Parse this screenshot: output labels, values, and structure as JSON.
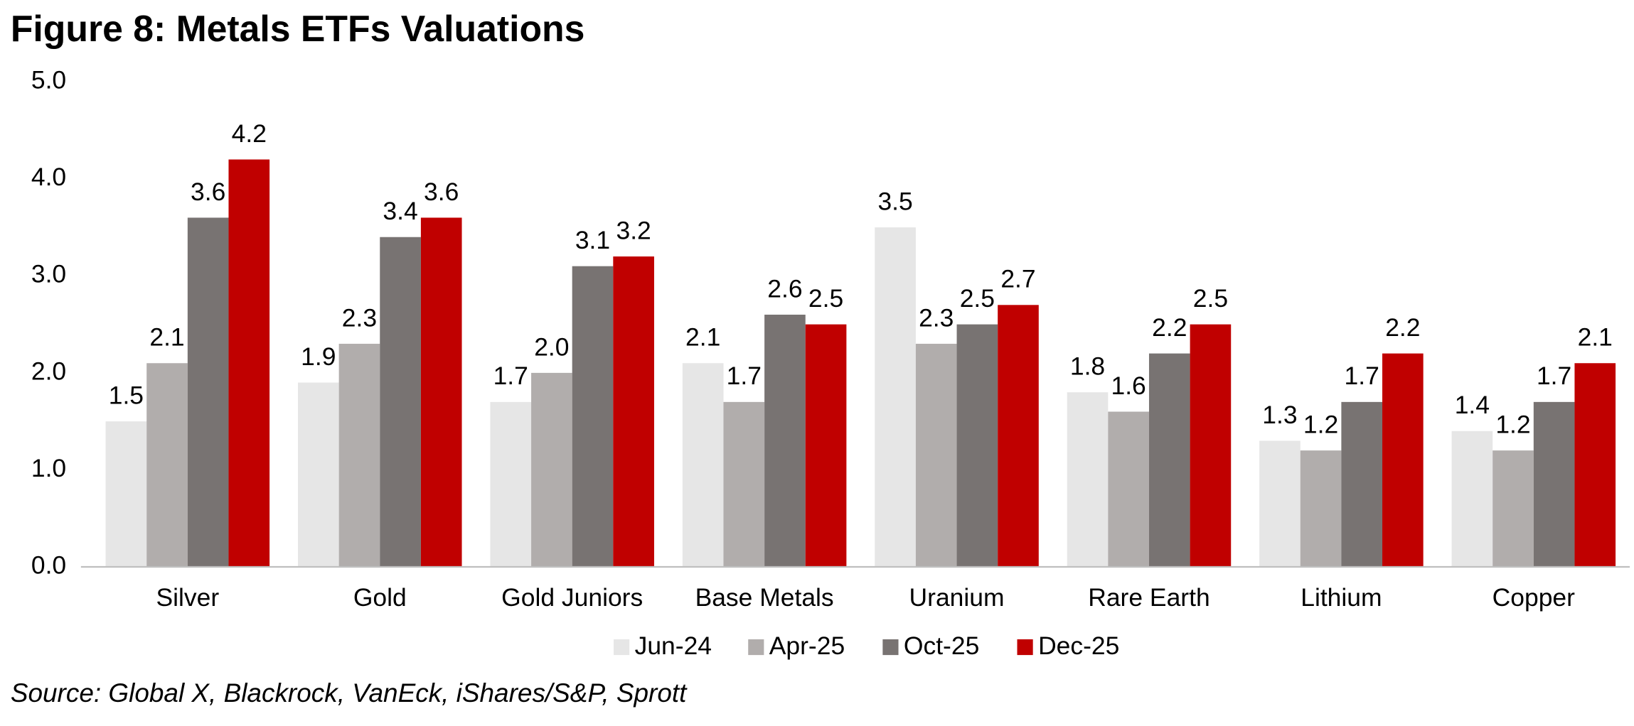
{
  "chart_data": {
    "type": "bar",
    "title": "Figure 8: Metals ETFs Valuations",
    "source": "Source: Global X, Blackrock, VanEck, iShares/S&P, Sprott",
    "categories": [
      "Silver",
      "Gold",
      "Gold Juniors",
      "Base Metals",
      "Uranium",
      "Rare Earth",
      "Lithium",
      "Copper"
    ],
    "series": [
      {
        "name": "Jun-24",
        "color": "#e6e6e6",
        "label_color": "#000000",
        "values": [
          1.5,
          1.9,
          1.7,
          2.1,
          3.5,
          1.8,
          1.3,
          1.4
        ],
        "value_labels": [
          "1.5",
          "1.9",
          "1.7",
          "2.1",
          "3.5",
          "1.8",
          "1.3",
          "1.4"
        ]
      },
      {
        "name": "Apr-25",
        "color": "#b1adac",
        "label_color": "#000000",
        "values": [
          2.1,
          2.3,
          2.0,
          1.7,
          2.3,
          1.6,
          1.2,
          1.2
        ],
        "value_labels": [
          "2.1",
          "2.3",
          "2.0",
          "1.7",
          "2.3",
          "1.6",
          "1.2",
          "1.2"
        ]
      },
      {
        "name": "Oct-25",
        "color": "#787372",
        "label_color": "#000000",
        "values": [
          3.6,
          3.4,
          3.1,
          2.6,
          2.5,
          2.2,
          1.7,
          1.7
        ],
        "value_labels": [
          "3.6",
          "3.4",
          "3.1",
          "2.6",
          "2.5",
          "2.2",
          "1.7",
          "1.7"
        ]
      },
      {
        "name": "Dec-25",
        "color": "#c00000",
        "label_color": "#c00000",
        "values": [
          4.2,
          3.6,
          3.2,
          2.5,
          2.7,
          2.5,
          2.2,
          2.1
        ],
        "value_labels": [
          "4.2",
          "3.6",
          "3.2",
          "2.5",
          "2.7",
          "2.5",
          "2.2",
          "2.1"
        ]
      }
    ],
    "ylim": [
      0,
      5
    ],
    "yticks": [
      {
        "value": 0,
        "label": "0.0"
      },
      {
        "value": 1,
        "label": "1.0"
      },
      {
        "value": 2,
        "label": "2.0"
      },
      {
        "value": 3,
        "label": "3.0"
      },
      {
        "value": 4,
        "label": "4.0"
      },
      {
        "value": 5,
        "label": "5.0"
      }
    ],
    "grid": false,
    "legend": "bottom"
  }
}
